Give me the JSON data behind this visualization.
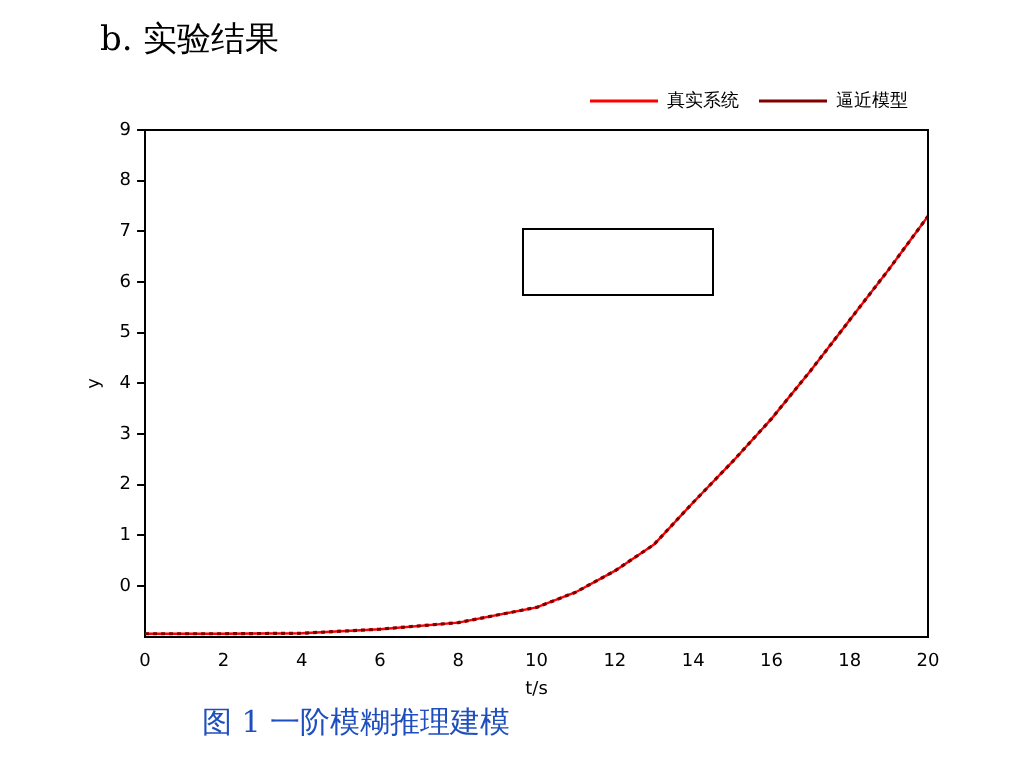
{
  "chart_data": {
    "type": "line",
    "title": "b. 实验结果",
    "xlabel": "t/s",
    "ylabel": "y",
    "annotations": [
      "图 1 一阶模糊推理建模"
    ],
    "x": [
      0,
      2,
      4,
      6,
      8,
      10,
      11,
      12,
      13,
      14,
      15,
      16,
      17,
      18,
      19,
      20
    ],
    "series": [
      {
        "name": "真实系统",
        "color": "#ff0000",
        "line_style": "solid",
        "values": [
          -0.94,
          -0.94,
          -0.93,
          -0.85,
          -0.72,
          -0.42,
          -0.12,
          0.3,
          0.82,
          1.65,
          2.45,
          3.3,
          4.25,
          5.25,
          6.25,
          7.3
        ]
      },
      {
        "name": "逼近模型",
        "color": "#800000",
        "line_style": "dotted",
        "values": [
          -0.94,
          -0.94,
          -0.93,
          -0.85,
          -0.72,
          -0.42,
          -0.12,
          0.3,
          0.82,
          1.65,
          2.45,
          3.3,
          4.25,
          5.25,
          6.25,
          7.3
        ]
      }
    ],
    "xlim": [
      0,
      20
    ],
    "xticks": [
      0,
      2,
      4,
      6,
      8,
      10,
      12,
      14,
      16,
      18,
      20
    ],
    "ylim": [
      -1,
      9
    ],
    "yticks": [
      0,
      1,
      2,
      3,
      4,
      5,
      6,
      7,
      8,
      9
    ],
    "grid": false,
    "legend": "top right"
  }
}
